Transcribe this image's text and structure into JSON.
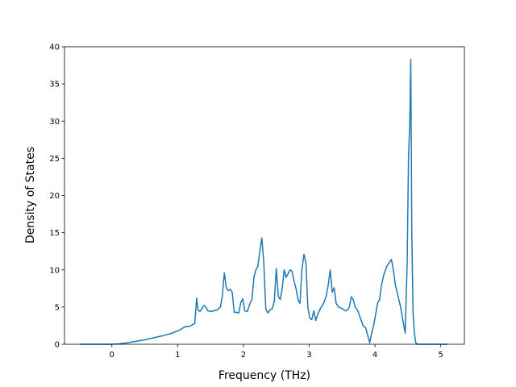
{
  "chart_data": {
    "type": "line",
    "title": "",
    "xlabel": "Frequency (THz)",
    "ylabel": "Density of States",
    "xlim": [
      -0.72,
      5.36
    ],
    "ylim": [
      0,
      40
    ],
    "xticks": [
      0,
      1,
      2,
      3,
      4,
      5
    ],
    "yticks": [
      0,
      5,
      10,
      15,
      20,
      25,
      30,
      35,
      40
    ],
    "grid": false,
    "line_color": "#1f77b4",
    "series": [
      {
        "x": [
          -0.48,
          -0.3,
          -0.1,
          0.0,
          0.1,
          0.2,
          0.3,
          0.4,
          0.5,
          0.6,
          0.7,
          0.8,
          0.9,
          1.0,
          1.05,
          1.1,
          1.14,
          1.18,
          1.22,
          1.26,
          1.29,
          1.31,
          1.34,
          1.37,
          1.4,
          1.43,
          1.46,
          1.5,
          1.55,
          1.6,
          1.65,
          1.68,
          1.71,
          1.74,
          1.77,
          1.8,
          1.83,
          1.86,
          1.9,
          1.93,
          1.96,
          1.99,
          2.02,
          2.06,
          2.1,
          2.13,
          2.16,
          2.19,
          2.22,
          2.25,
          2.28,
          2.31,
          2.34,
          2.37,
          2.4,
          2.44,
          2.47,
          2.5,
          2.53,
          2.56,
          2.59,
          2.62,
          2.65,
          2.68,
          2.71,
          2.74,
          2.77,
          2.8,
          2.83,
          2.86,
          2.89,
          2.92,
          2.95,
          2.98,
          3.01,
          3.04,
          3.07,
          3.1,
          3.13,
          3.17,
          3.22,
          3.26,
          3.29,
          3.32,
          3.35,
          3.38,
          3.41,
          3.45,
          3.5,
          3.55,
          3.58,
          3.61,
          3.64,
          3.67,
          3.7,
          3.74,
          3.78,
          3.82,
          3.86,
          3.89,
          3.92,
          3.95,
          3.98,
          4.01,
          4.04,
          4.07,
          4.1,
          4.14,
          4.18,
          4.22,
          4.25,
          4.28,
          4.31,
          4.35,
          4.39,
          4.43,
          4.46,
          4.49,
          4.51,
          4.53,
          4.545,
          4.56,
          4.58,
          4.6,
          4.62,
          4.65,
          4.7,
          4.8,
          5.0,
          5.1
        ],
        "y": [
          0,
          0,
          0,
          0,
          0.05,
          0.15,
          0.3,
          0.45,
          0.6,
          0.8,
          1.0,
          1.2,
          1.45,
          1.8,
          2.0,
          2.3,
          2.4,
          2.4,
          2.6,
          2.8,
          6.2,
          4.6,
          4.4,
          4.8,
          5.2,
          5.0,
          4.5,
          4.4,
          4.5,
          4.6,
          5.0,
          6.5,
          9.6,
          7.6,
          7.2,
          7.4,
          7.0,
          4.3,
          4.3,
          4.2,
          5.6,
          6.1,
          4.5,
          4.4,
          5.5,
          6.0,
          9.0,
          10.0,
          10.5,
          12.5,
          14.3,
          11.0,
          4.8,
          4.2,
          4.6,
          4.8,
          5.8,
          10.2,
          6.5,
          6.0,
          7.5,
          10.0,
          9.0,
          9.5,
          10.0,
          9.8,
          8.5,
          7.5,
          6.0,
          5.5,
          10.0,
          12.1,
          11.0,
          5.0,
          3.5,
          3.3,
          4.5,
          3.2,
          4.0,
          4.8,
          5.5,
          6.5,
          8.0,
          10.0,
          7.0,
          7.6,
          5.5,
          5.0,
          4.8,
          4.5,
          4.6,
          5.0,
          6.4,
          6.0,
          5.0,
          4.5,
          3.5,
          2.5,
          2.2,
          1.2,
          0.2,
          1.5,
          2.5,
          4.0,
          5.5,
          6.0,
          8.0,
          9.5,
          10.5,
          11.0,
          11.4,
          10.0,
          8.0,
          6.5,
          5.0,
          3.0,
          1.5,
          11.0,
          25.0,
          30.0,
          38.3,
          15.0,
          4.0,
          1.5,
          0.2,
          0,
          0,
          0,
          0,
          0
        ]
      }
    ]
  }
}
